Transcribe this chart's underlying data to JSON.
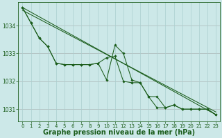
{
  "x": [
    0,
    1,
    2,
    3,
    4,
    5,
    6,
    7,
    8,
    9,
    10,
    11,
    12,
    13,
    14,
    15,
    16,
    17,
    18,
    19,
    20,
    21,
    22,
    23
  ],
  "line1": [
    1034.65,
    1034.1,
    1033.55,
    1033.25,
    1032.65,
    1032.6,
    1032.6,
    1032.6,
    1032.6,
    1032.65,
    1032.05,
    1033.3,
    1033.0,
    1032.05,
    1031.95,
    1031.45,
    1031.45,
    1031.05,
    1031.15,
    1031.0,
    1031.0,
    1031.0,
    1031.0,
    1030.8
  ],
  "line2": [
    1034.65,
    1034.1,
    1033.55,
    1033.25,
    1032.65,
    1032.6,
    1032.6,
    1032.6,
    1032.6,
    1032.65,
    1032.85,
    1032.9,
    1032.0,
    1031.95,
    1031.95,
    1031.45,
    1031.05,
    1031.05,
    1031.15,
    1031.0,
    1031.0,
    1031.0,
    1031.0,
    1030.8
  ],
  "trend1_x": [
    0,
    23
  ],
  "trend1_y": [
    1034.65,
    1030.8
  ],
  "trend2_x": [
    0,
    23
  ],
  "trend2_y": [
    1034.55,
    1030.9
  ],
  "ylim_min": 1030.55,
  "ylim_max": 1034.85,
  "yticks": [
    1031,
    1032,
    1033,
    1034
  ],
  "xticks": [
    0,
    1,
    2,
    3,
    4,
    5,
    6,
    7,
    8,
    9,
    10,
    11,
    12,
    13,
    14,
    15,
    16,
    17,
    18,
    19,
    20,
    21,
    22,
    23
  ],
  "xlabel": "Graphe pression niveau de la mer (hPa)",
  "bg_color": "#cce8e8",
  "grid_color": "#aacfcf",
  "line_color": "#1a5c1a",
  "marker": "D",
  "marker_size": 1.8,
  "line_width": 0.75,
  "xlabel_fontsize": 7.0
}
